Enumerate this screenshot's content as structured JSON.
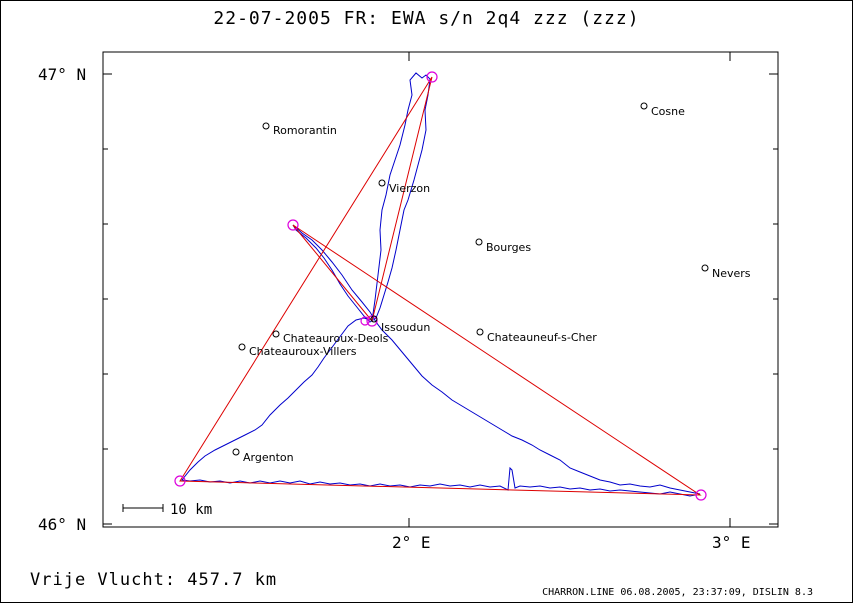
{
  "title": "22-07-2005   FR: EWA s/n 2q4   zzz (zzz)",
  "footer": {
    "distance": "Vrije Vlucht:  457.7 km",
    "credits": "CHARRON.LINE 06.08.2005, 23:37:09, DISLIN 8.3"
  },
  "axes": {
    "lat_top": "47° N",
    "lat_bottom": "46° N",
    "lon_2": "2° E",
    "lon_3": "3° E"
  },
  "scale_bar": {
    "label": "10 km"
  },
  "places": [
    {
      "name": "Romorantin"
    },
    {
      "name": "Cosne"
    },
    {
      "name": "Vierzon"
    },
    {
      "name": "Bourges"
    },
    {
      "name": "Nevers"
    },
    {
      "name": "Issoudun"
    },
    {
      "name": "Chateauroux-Deols"
    },
    {
      "name": "Chateauneuf-s-Cher"
    },
    {
      "name": "Chateauroux-Villers"
    },
    {
      "name": "Argenton"
    }
  ],
  "colors": {
    "track": "#0000cc",
    "route": "#dd0000",
    "turnpoint": "#dd00dd"
  }
}
